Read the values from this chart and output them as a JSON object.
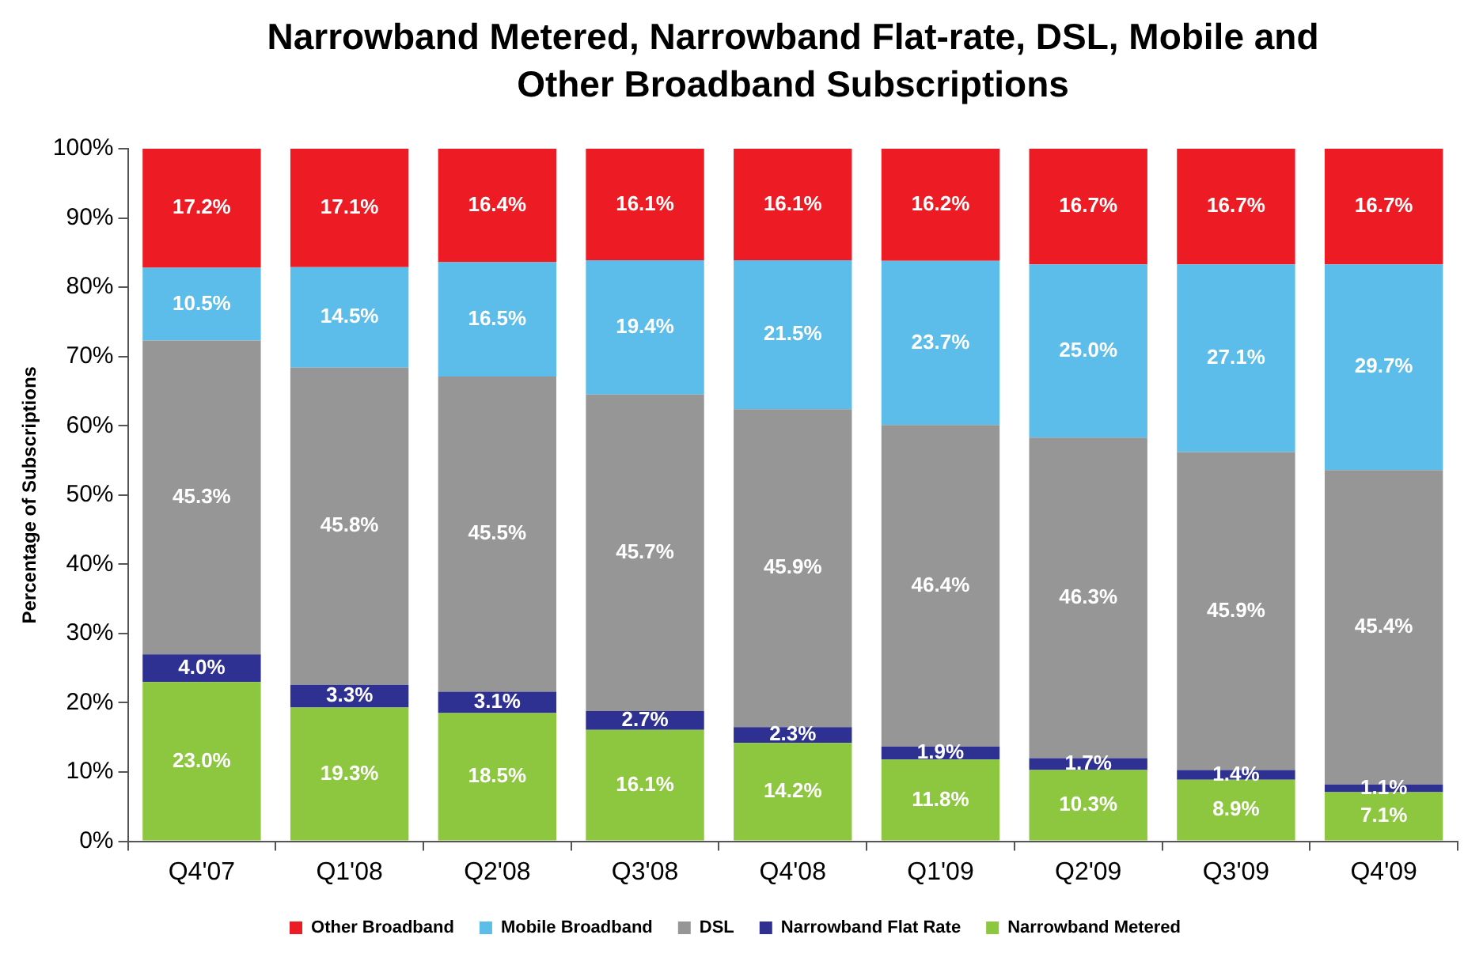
{
  "chart_data": {
    "type": "bar",
    "title": "Narrowband Metered, Narrowband Flat-rate, DSL, Mobile and Other Broadband Subscriptions",
    "ylabel": "Percentage of Subscriptions",
    "categories": [
      "Q4'07",
      "Q1'08",
      "Q2'08",
      "Q3'08",
      "Q4'08",
      "Q1'09",
      "Q2'09",
      "Q3'09",
      "Q4'09"
    ],
    "stacked": true,
    "grid": false,
    "legend": "bottom",
    "ylim": [
      0,
      100
    ],
    "yticks": [
      {
        "value": 0,
        "label": "0%"
      },
      {
        "value": 10,
        "label": "10%"
      },
      {
        "value": 20,
        "label": "20%"
      },
      {
        "value": 30,
        "label": "30%"
      },
      {
        "value": 40,
        "label": "40%"
      },
      {
        "value": 50,
        "label": "50%"
      },
      {
        "value": 60,
        "label": "60%"
      },
      {
        "value": 70,
        "label": "70%"
      },
      {
        "value": 80,
        "label": "80%"
      },
      {
        "value": 90,
        "label": "90%"
      },
      {
        "value": 100,
        "label": "100%"
      }
    ],
    "series": [
      {
        "name": "Narrowband Metered",
        "color": "#8dc63f",
        "values": [
          23.0,
          19.3,
          18.5,
          16.1,
          14.2,
          11.8,
          10.3,
          8.9,
          7.1
        ],
        "value_labels": [
          "23.0%",
          "19.3%",
          "18.5%",
          "16.1%",
          "14.2%",
          "11.8%",
          "10.3%",
          "8.9%",
          "7.1%"
        ]
      },
      {
        "name": "Narrowband Flat Rate",
        "color": "#2e3192",
        "values": [
          4.0,
          3.3,
          3.1,
          2.7,
          2.3,
          1.9,
          1.7,
          1.4,
          1.1
        ],
        "value_labels": [
          "4.0%",
          "3.3%",
          "3.1%",
          "2.7%",
          "2.3%",
          "1.9%",
          "1.7%",
          "1.4%",
          "1.1%"
        ]
      },
      {
        "name": "DSL",
        "color": "#969696",
        "values": [
          45.3,
          45.8,
          45.5,
          45.7,
          45.9,
          46.4,
          46.3,
          45.9,
          45.4
        ],
        "value_labels": [
          "45.3%",
          "45.8%",
          "45.5%",
          "45.7%",
          "45.9%",
          "46.4%",
          "46.3%",
          "45.9%",
          "45.4%"
        ]
      },
      {
        "name": "Mobile Broadband",
        "color": "#5cbcea",
        "values": [
          10.5,
          14.5,
          16.5,
          19.4,
          21.5,
          23.7,
          25.0,
          27.1,
          29.7
        ],
        "value_labels": [
          "10.5%",
          "14.5%",
          "16.5%",
          "19.4%",
          "21.5%",
          "23.7%",
          "25.0%",
          "27.1%",
          "29.7%"
        ]
      },
      {
        "name": "Other Broadband",
        "color": "#ed1c24",
        "values": [
          17.2,
          17.1,
          16.4,
          16.1,
          16.1,
          16.2,
          16.7,
          16.7,
          16.7
        ],
        "value_labels": [
          "17.2%",
          "17.1%",
          "16.4%",
          "16.1%",
          "16.1%",
          "16.2%",
          "16.7%",
          "16.7%",
          "16.7%"
        ]
      }
    ]
  }
}
